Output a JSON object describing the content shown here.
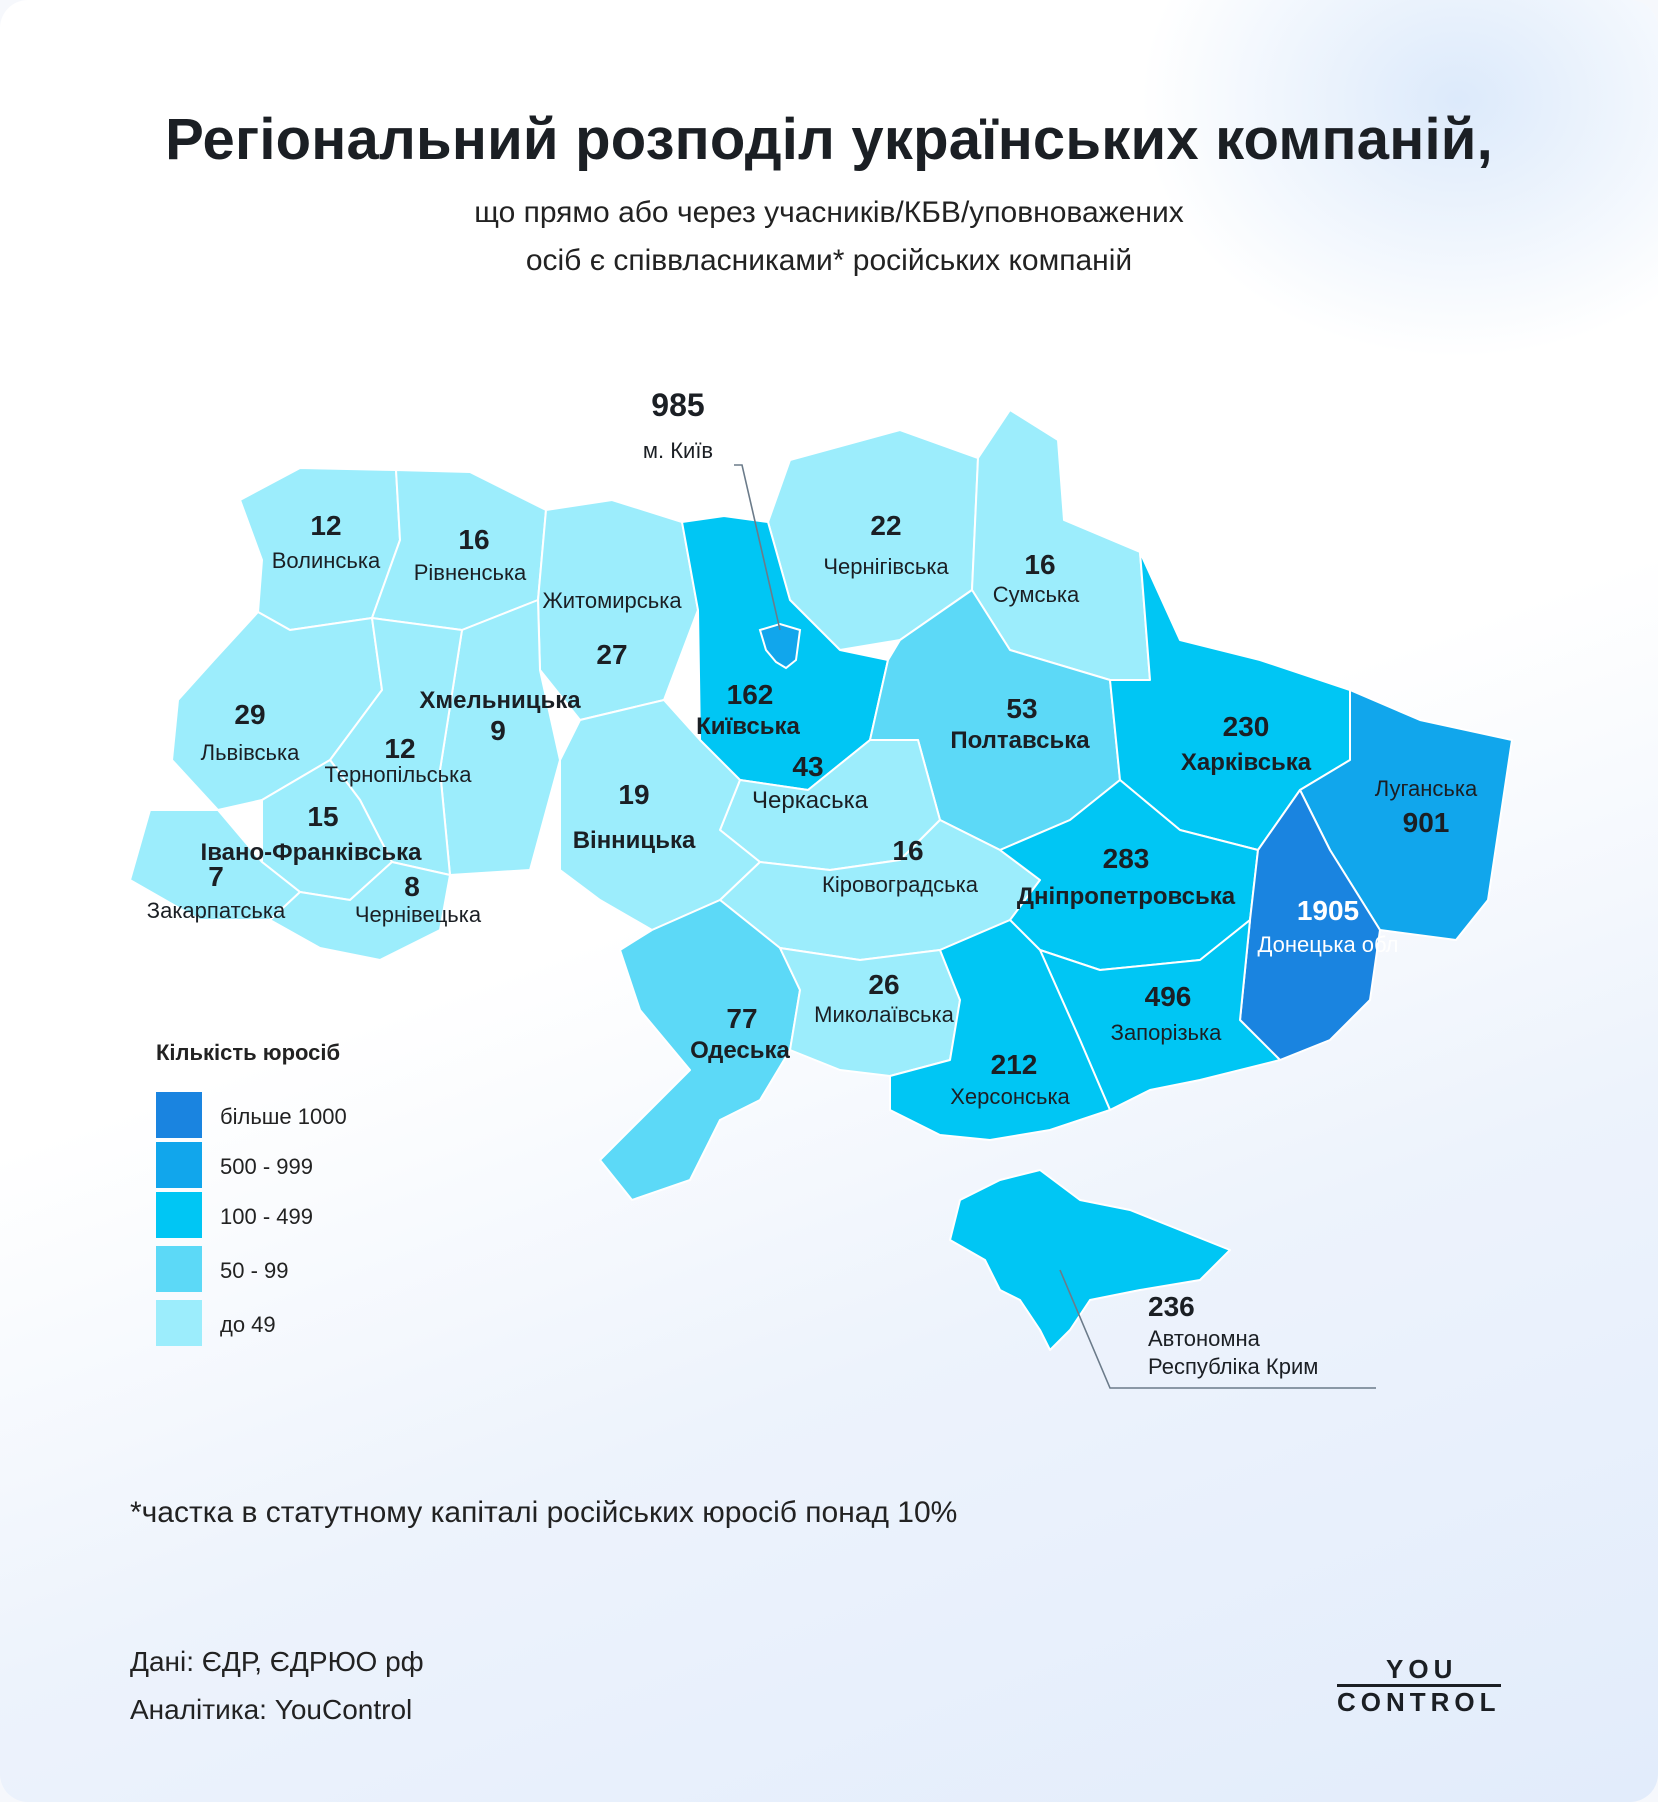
{
  "title": "Регіональний розподіл українських компаній,",
  "subtitle_line1": "що прямо або через учасників/КБВ/уповноважених",
  "subtitle_line2": "осіб є співвласниками* російських компаній",
  "legend": {
    "title": "Кількість юросіб",
    "items": [
      {
        "label": "більше 1000",
        "color": "#1a84e0"
      },
      {
        "label": "500 - 999",
        "color": "#11a6ec"
      },
      {
        "label": "100 - 499",
        "color": "#00c6f4"
      },
      {
        "label": "50 - 99",
        "color": "#5cd9f7"
      },
      {
        "label": "до 49",
        "color": "#9cedfc"
      }
    ]
  },
  "regions": [
    {
      "name": "Волинська",
      "value": "12"
    },
    {
      "name": "Рівненська",
      "value": "16"
    },
    {
      "name": "Житомирська",
      "value": "27"
    },
    {
      "name": "Чернігівська",
      "value": "22"
    },
    {
      "name": "Сумська",
      "value": "16"
    },
    {
      "name": "Львівська",
      "value": "29"
    },
    {
      "name": "Хмельницька",
      "value": "9"
    },
    {
      "name": "Тернопільська",
      "value": "12"
    },
    {
      "name": "Київська",
      "value": "162"
    },
    {
      "name": "Полтавська",
      "value": "53"
    },
    {
      "name": "Харківська",
      "value": "230"
    },
    {
      "name": "Луганська",
      "value": "901"
    },
    {
      "name": "Черкаська",
      "value": "43"
    },
    {
      "name": "Вінницька",
      "value": "19"
    },
    {
      "name": "Івано-Франківська",
      "value": "15"
    },
    {
      "name": "Закарпатська",
      "value": "7"
    },
    {
      "name": "Чернівецька",
      "value": "8"
    },
    {
      "name": "Кіровоградська",
      "value": "16"
    },
    {
      "name": "Дніпропетровська",
      "value": "283"
    },
    {
      "name": "Донецька обл",
      "value": "1905"
    },
    {
      "name": "Одеська",
      "value": "77"
    },
    {
      "name": "Миколаївська",
      "value": "26"
    },
    {
      "name": "Запорізька",
      "value": "496"
    },
    {
      "name": "Херсонська",
      "value": "212"
    }
  ],
  "kyiv_city": {
    "name": "м. Київ",
    "value": "985"
  },
  "crimea": {
    "value": "236",
    "line1": "Автономна",
    "line2": "Республіка Крим"
  },
  "footnote": "*частка в статутному капіталі російських юросіб понад 10%",
  "source": "Дані: ЄДР, ЄДРЮО рф",
  "analytics": "Аналітика: YouControl",
  "logo": {
    "line1": "YOU",
    "line2": "CONTROL"
  }
}
